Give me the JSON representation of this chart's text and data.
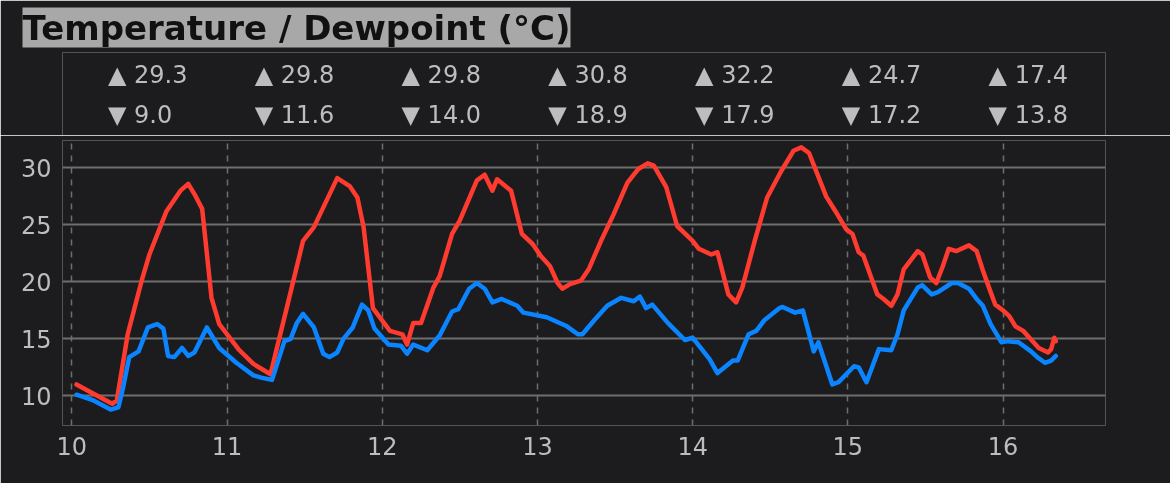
{
  "chart_data": {
    "type": "line",
    "title": "Temperature / Dewpoint (°C)",
    "series": [
      {
        "color": "#ff3b30",
        "x": [
          10.03,
          10.26,
          10.29,
          10.36,
          10.45,
          10.5,
          10.61,
          10.7,
          10.75,
          10.79,
          10.84,
          10.9,
          10.95,
          11.08,
          11.17,
          11.28,
          11.39,
          11.49,
          11.56,
          11.71,
          11.79,
          11.84,
          11.88,
          11.94,
          12.05,
          12.13,
          12.16,
          12.2,
          12.25,
          12.33,
          12.37,
          12.45,
          12.5,
          12.61,
          12.66,
          12.71,
          12.74,
          12.83,
          12.9,
          12.97,
          13.02,
          13.08,
          13.13,
          13.16,
          13.21,
          13.28,
          13.33,
          13.41,
          13.49,
          13.58,
          13.65,
          13.71,
          13.75,
          13.83,
          13.9,
          14.0,
          14.04,
          14.12,
          14.16,
          14.23,
          14.28,
          14.32,
          14.4,
          14.48,
          14.57,
          14.65,
          14.7,
          14.75,
          14.86,
          14.92,
          14.99,
          15.03,
          15.07,
          15.1,
          15.19,
          15.23,
          15.28,
          15.32,
          15.36,
          15.45,
          15.48,
          15.53,
          15.57,
          15.61,
          15.65,
          15.7,
          15.78,
          15.83,
          15.87,
          15.92,
          15.95,
          16.0,
          16.04,
          16.08,
          16.13,
          16.17,
          16.23,
          16.29,
          16.31,
          16.33,
          16.34
        ],
        "values": [
          11.0,
          9.3,
          9.6,
          15.4,
          20.1,
          22.4,
          26.2,
          28.0,
          28.6,
          27.7,
          26.4,
          18.6,
          16.3,
          14.0,
          12.8,
          11.9,
          18.0,
          23.6,
          24.8,
          29.1,
          28.4,
          27.4,
          24.8,
          17.7,
          15.7,
          15.4,
          14.5,
          16.4,
          16.4,
          19.5,
          20.5,
          24.2,
          25.4,
          28.9,
          29.4,
          28.0,
          29.0,
          28.0,
          24.2,
          23.3,
          22.3,
          21.4,
          19.9,
          19.4,
          19.8,
          20.1,
          21.1,
          23.6,
          25.9,
          28.7,
          29.9,
          30.4,
          30.2,
          28.3,
          24.9,
          23.6,
          22.9,
          22.4,
          22.6,
          18.9,
          18.2,
          19.5,
          23.6,
          27.4,
          29.7,
          31.5,
          31.8,
          31.3,
          27.5,
          26.2,
          24.6,
          24.2,
          22.6,
          22.3,
          18.9,
          18.5,
          17.9,
          18.9,
          21.1,
          22.7,
          22.4,
          20.4,
          19.9,
          21.3,
          22.9,
          22.7,
          23.2,
          22.7,
          21.0,
          19.1,
          18.0,
          17.5,
          17.0,
          16.1,
          15.7,
          15.1,
          14.2,
          13.8,
          14.1,
          15.1,
          14.8
        ]
      },
      {
        "color": "#0a84ff",
        "x": [
          10.03,
          10.14,
          10.25,
          10.3,
          10.33,
          10.37,
          10.43,
          10.49,
          10.55,
          10.59,
          10.62,
          10.66,
          10.71,
          10.75,
          10.79,
          10.87,
          10.95,
          11.06,
          11.17,
          11.22,
          11.29,
          11.37,
          11.41,
          11.45,
          11.49,
          11.56,
          11.62,
          11.66,
          11.71,
          11.75,
          11.81,
          11.87,
          11.91,
          11.95,
          12.04,
          12.12,
          12.16,
          12.2,
          12.29,
          12.37,
          12.45,
          12.49,
          12.56,
          12.61,
          12.66,
          12.71,
          12.77,
          12.87,
          12.91,
          13.06,
          13.19,
          13.26,
          13.29,
          13.37,
          13.45,
          13.54,
          13.62,
          13.66,
          13.7,
          13.74,
          13.84,
          13.95,
          14.0,
          14.11,
          14.16,
          14.26,
          14.29,
          14.36,
          14.41,
          14.46,
          14.56,
          14.58,
          14.66,
          14.71,
          14.78,
          14.81,
          14.9,
          14.94,
          15.04,
          15.07,
          15.12,
          15.2,
          15.28,
          15.32,
          15.36,
          15.45,
          15.48,
          15.54,
          15.58,
          15.67,
          15.71,
          15.78,
          15.83,
          15.87,
          15.92,
          15.99,
          16.03,
          16.1,
          16.18,
          16.22,
          16.27,
          16.31,
          16.34
        ],
        "values": [
          10.1,
          9.6,
          8.8,
          9.0,
          10.7,
          13.4,
          13.9,
          16.0,
          16.3,
          15.9,
          13.5,
          13.4,
          14.2,
          13.5,
          13.8,
          16.0,
          14.2,
          12.9,
          11.8,
          11.6,
          11.4,
          14.8,
          15.0,
          16.4,
          17.2,
          16.0,
          13.7,
          13.4,
          13.8,
          15.0,
          16.0,
          18.0,
          17.5,
          15.9,
          14.5,
          14.4,
          13.7,
          14.5,
          14.0,
          15.3,
          17.4,
          17.6,
          19.4,
          19.9,
          19.4,
          18.2,
          18.5,
          17.9,
          17.3,
          16.9,
          16.1,
          15.4,
          15.4,
          16.7,
          17.9,
          18.6,
          18.3,
          18.7,
          17.7,
          18.0,
          16.4,
          14.9,
          15.1,
          13.2,
          12.0,
          13.1,
          13.1,
          15.4,
          15.7,
          16.6,
          17.7,
          17.8,
          17.3,
          17.5,
          13.9,
          14.7,
          11.0,
          11.2,
          12.6,
          12.5,
          11.2,
          14.1,
          14.0,
          15.4,
          17.5,
          19.5,
          19.7,
          18.9,
          19.1,
          19.9,
          19.9,
          19.4,
          18.5,
          17.9,
          16.3,
          14.7,
          14.8,
          14.7,
          13.9,
          13.4,
          12.9,
          13.1,
          13.5
        ]
      }
    ],
    "xlim": [
      9.94,
      16.66
    ],
    "xticks": [
      10,
      11,
      12,
      13,
      14,
      15,
      16
    ],
    "ylim": [
      7.4,
      32.4
    ],
    "yticks": [
      10,
      15,
      20,
      25,
      30
    ],
    "grid": true,
    "marker": "none",
    "line_style": "solid",
    "annotations": [
      "▲ 29.3",
      "▼ 9.0",
      "▲ 29.8",
      "▼ 11.6",
      "▲ 29.8",
      "▼ 14.0",
      "▲ 30.8",
      "▼ 18.9",
      "▲ 32.2",
      "▼ 17.9",
      "▲ 24.7",
      "▼ 17.2",
      "▲ 17.4",
      "▼ 13.8"
    ]
  }
}
